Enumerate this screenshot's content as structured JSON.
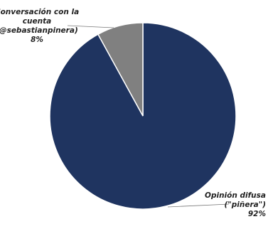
{
  "chart_data": {
    "type": "pie",
    "start_angle_deg": 0,
    "direction": "clockwise",
    "slices": [
      {
        "label_lines": [
          "Opinión difusa",
          "(\"piñera\")",
          "92%"
        ],
        "value": 92,
        "color": "#1f3460"
      },
      {
        "label_lines": [
          "Conversación con la",
          "cuenta",
          "(@sebastianpinera)",
          "8%"
        ],
        "value": 8,
        "color": "#808080"
      }
    ]
  }
}
